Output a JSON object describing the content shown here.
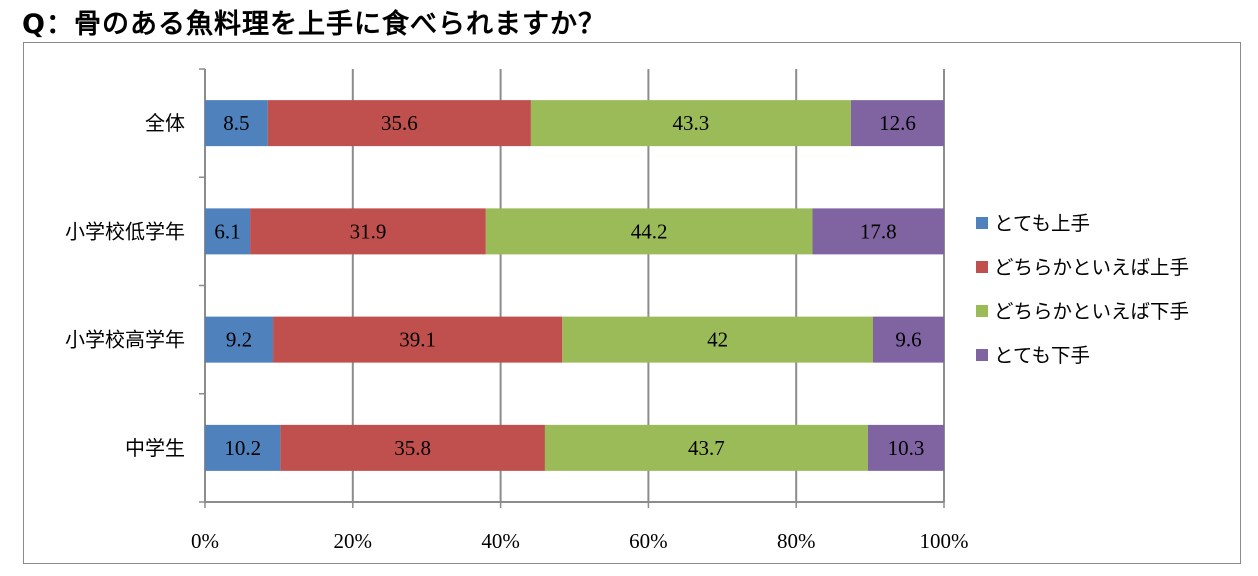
{
  "question": "Q：骨のある魚料理を上手に食べられますか？",
  "chart_data": {
    "type": "bar",
    "orientation": "horizontal",
    "stacked": "percent",
    "categories": [
      "全体",
      "小学校低学年",
      "小学校高学年",
      "中学生"
    ],
    "series": [
      {
        "name": "とても上手",
        "color": "#4f81bd",
        "values": [
          8.5,
          6.1,
          9.2,
          10.2
        ]
      },
      {
        "name": "どちらかといえば上手",
        "color": "#c0504d",
        "values": [
          35.6,
          31.9,
          39.1,
          35.8
        ]
      },
      {
        "name": "どちらかといえば下手",
        "color": "#9bbb59",
        "values": [
          43.3,
          44.2,
          42,
          43.7
        ]
      },
      {
        "name": "とても下手",
        "color": "#8064a2",
        "values": [
          12.6,
          17.8,
          9.6,
          10.3
        ]
      }
    ],
    "x_ticks": [
      "0%",
      "20%",
      "40%",
      "60%",
      "80%",
      "100%"
    ],
    "xlim": [
      0,
      100
    ],
    "grid": true,
    "legend": "right"
  }
}
